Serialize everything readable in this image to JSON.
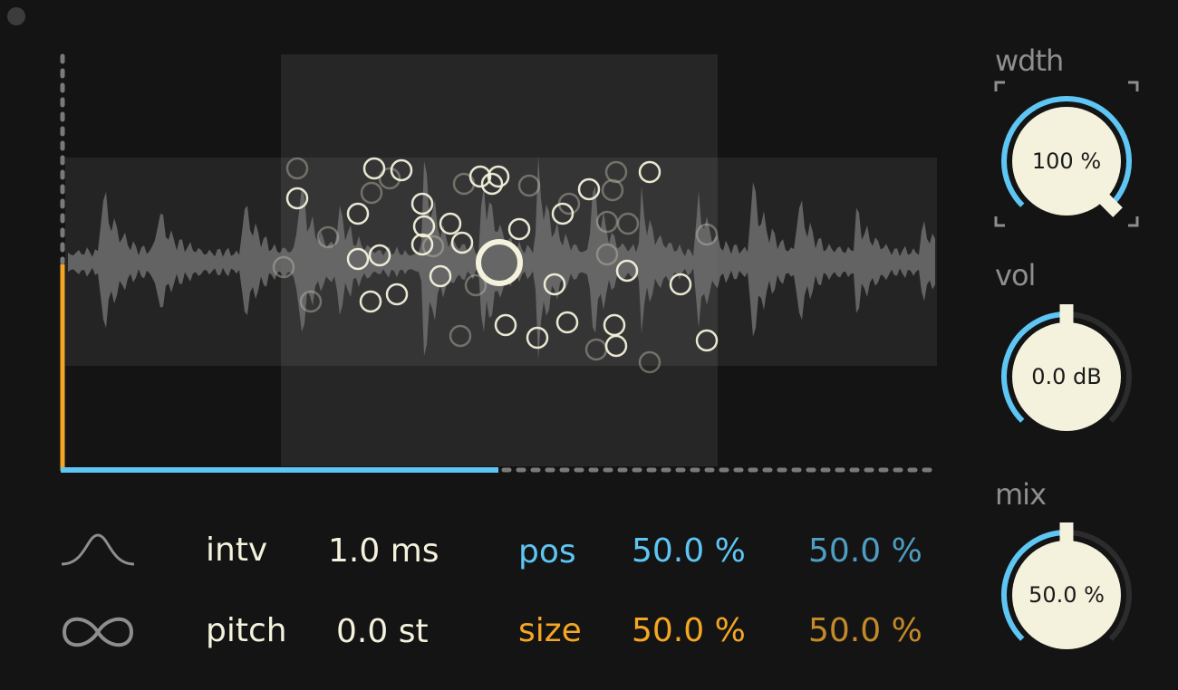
{
  "colors": {
    "background": "#141414",
    "blue": "#5ec6f4",
    "blue_dim": "#4e9dc2",
    "orange": "#f5a623",
    "orange_dim": "#c48a2a",
    "cream": "#f4f2dc",
    "grey": "#8e8e8e"
  },
  "display": {
    "x_track_fraction": 0.5,
    "y_track_fraction": 0.5
  },
  "params": {
    "window_icon": "window-curve-icon",
    "loop_icon": "loop-infinity-icon",
    "intv_label": "intv",
    "intv_value": "1.0 ms",
    "pitch_label": "pitch",
    "pitch_value": "0.0 st",
    "pos_label": "pos",
    "pos_value": "50.0 %",
    "pos_value_2": "50.0 %",
    "size_label": "size",
    "size_value": "50.0 %",
    "size_value_2": "50.0 %"
  },
  "knobs": {
    "width": {
      "label": "wdth",
      "value": "100 %",
      "fraction": 1.0
    },
    "vol": {
      "label": "vol",
      "value": "0.0 dB",
      "fraction": 0.5
    },
    "mix": {
      "label": "mix",
      "value": "50.0 %",
      "fraction": 0.5
    }
  }
}
